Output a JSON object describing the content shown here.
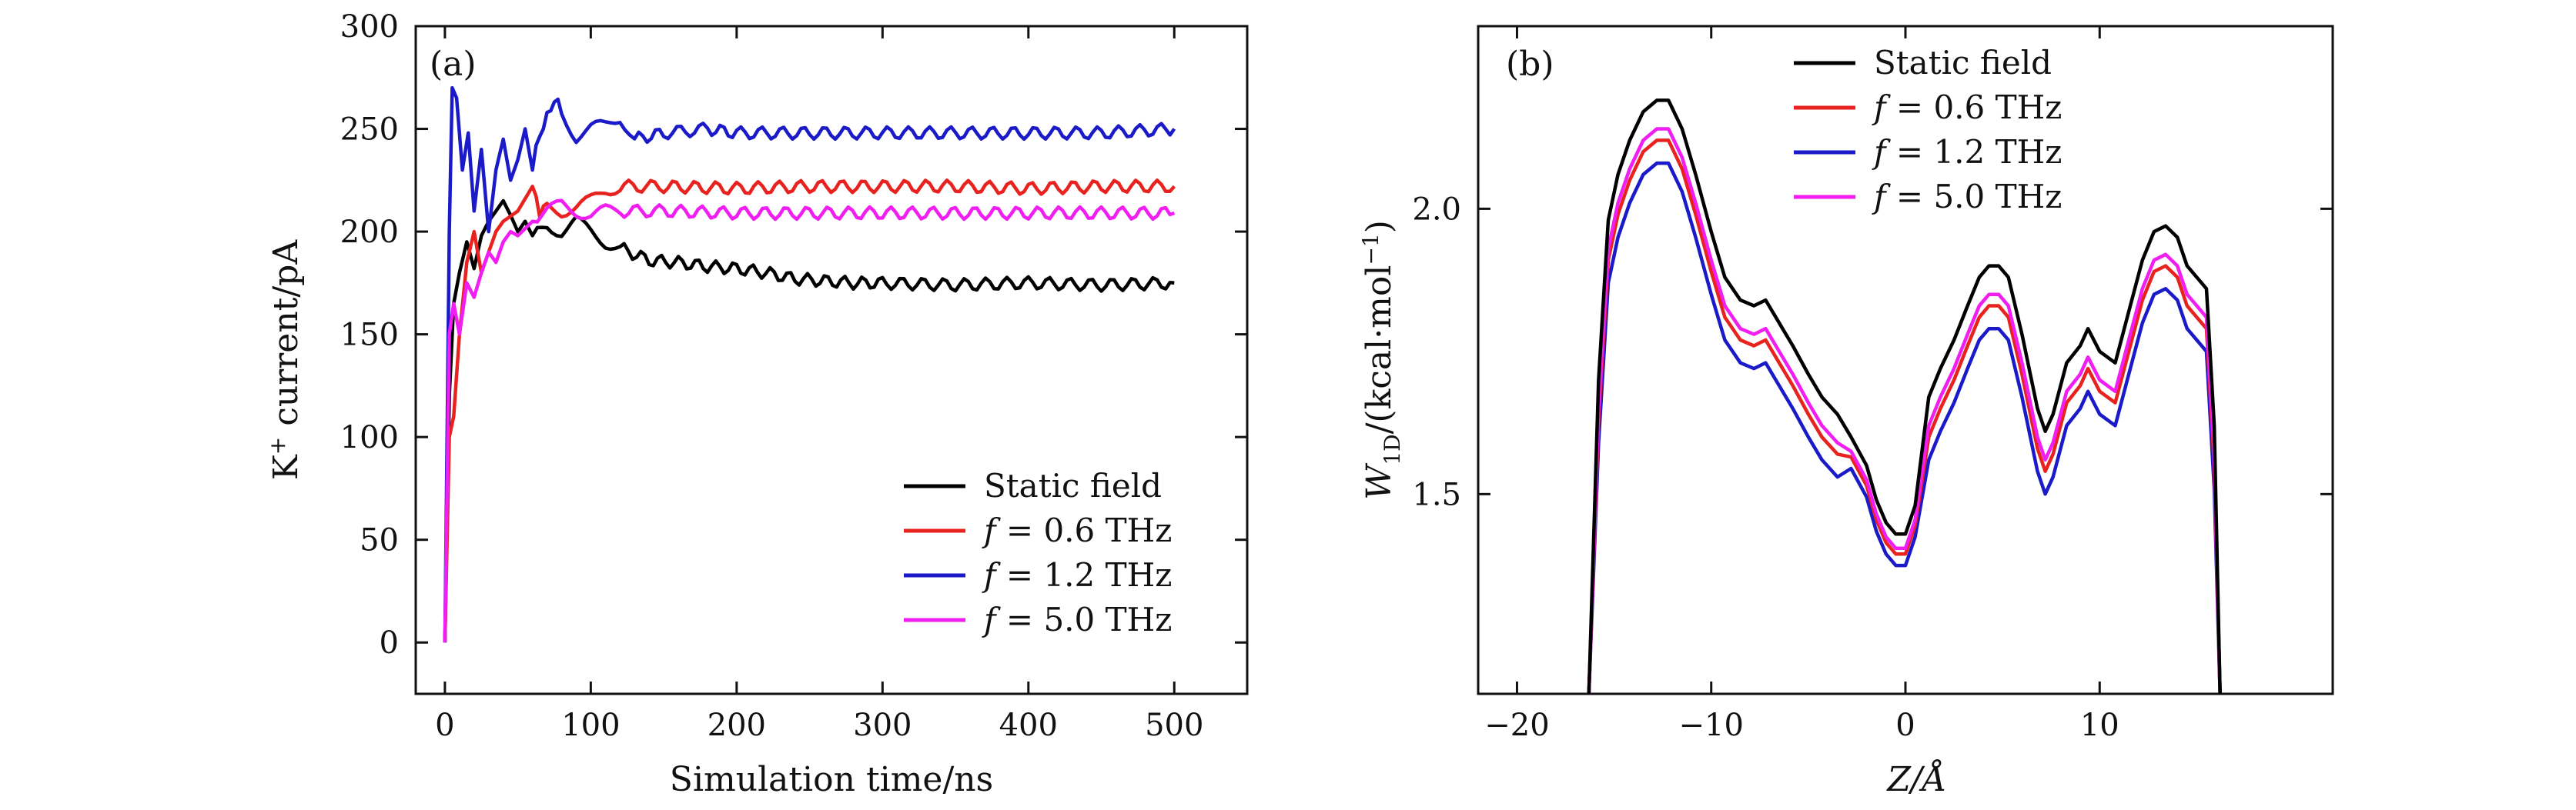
{
  "chart_data": [
    {
      "panel_label": "(a)",
      "type": "line",
      "xlabel": "Simulation time/ns",
      "ylabel_main": "K",
      "ylabel_sup": "+",
      "ylabel_rest": " current/pA",
      "xlim": [
        -20,
        550
      ],
      "ylim": [
        -25,
        300
      ],
      "xticks": [
        0,
        100,
        200,
        300,
        400,
        500
      ],
      "yticks": [
        0,
        50,
        100,
        150,
        200,
        250,
        300
      ],
      "legend_position": "bottom-right",
      "series": [
        {
          "name": "Static field",
          "color": "#000000",
          "points": [
            [
              0,
              0
            ],
            [
              3,
              120
            ],
            [
              6,
              165
            ],
            [
              10,
              180
            ],
            [
              15,
              195
            ],
            [
              20,
              182
            ],
            [
              25,
              198
            ],
            [
              30,
              205
            ],
            [
              35,
              210
            ],
            [
              40,
              215
            ],
            [
              45,
              208
            ],
            [
              50,
              200
            ],
            [
              55,
              205
            ],
            [
              60,
              198
            ],
            [
              70,
              203
            ],
            [
              80,
              200
            ],
            [
              90,
              205
            ],
            [
              100,
              200
            ],
            [
              110,
              195
            ],
            [
              120,
              192
            ],
            [
              140,
              186
            ],
            [
              160,
              185
            ],
            [
              180,
              183
            ],
            [
              200,
              182
            ],
            [
              220,
              180
            ],
            [
              240,
              177
            ],
            [
              260,
              176
            ],
            [
              280,
              175
            ],
            [
              300,
              175
            ],
            [
              350,
              174
            ],
            [
              400,
              175
            ],
            [
              450,
              174
            ],
            [
              500,
              175
            ]
          ]
        },
        {
          "name": "f = 0.6 THz",
          "color": "#e8221e",
          "points": [
            [
              0,
              0
            ],
            [
              3,
              100
            ],
            [
              6,
              110
            ],
            [
              10,
              150
            ],
            [
              15,
              185
            ],
            [
              20,
              200
            ],
            [
              25,
              180
            ],
            [
              30,
              190
            ],
            [
              35,
              200
            ],
            [
              40,
              205
            ],
            [
              50,
              210
            ],
            [
              60,
              222
            ],
            [
              65,
              210
            ],
            [
              70,
              212
            ],
            [
              80,
              210
            ],
            [
              90,
              212
            ],
            [
              100,
              215
            ],
            [
              110,
              220
            ],
            [
              120,
              222
            ],
            [
              150,
              222
            ],
            [
              200,
              221
            ],
            [
              250,
              222
            ],
            [
              300,
              222
            ],
            [
              350,
              222
            ],
            [
              400,
              221
            ],
            [
              450,
              222
            ],
            [
              500,
              222
            ]
          ]
        },
        {
          "name": "f = 1.2 THz",
          "color": "#1a1ac8",
          "points": [
            [
              0,
              0
            ],
            [
              3,
              200
            ],
            [
              5,
              270
            ],
            [
              8,
              265
            ],
            [
              12,
              230
            ],
            [
              16,
              248
            ],
            [
              20,
              210
            ],
            [
              25,
              240
            ],
            [
              30,
              200
            ],
            [
              35,
              230
            ],
            [
              40,
              245
            ],
            [
              45,
              225
            ],
            [
              50,
              235
            ],
            [
              55,
              250
            ],
            [
              60,
              230
            ],
            [
              65,
              248
            ],
            [
              70,
              255
            ],
            [
              75,
              265
            ],
            [
              80,
              258
            ],
            [
              90,
              246
            ],
            [
              100,
              250
            ],
            [
              110,
              252
            ],
            [
              120,
              256
            ],
            [
              130,
              245
            ],
            [
              150,
              248
            ],
            [
              180,
              250
            ],
            [
              200,
              248
            ],
            [
              250,
              248
            ],
            [
              300,
              248
            ],
            [
              350,
              248
            ],
            [
              400,
              248
            ],
            [
              450,
              248
            ],
            [
              500,
              250
            ]
          ]
        },
        {
          "name": "f = 5.0 THz",
          "color": "#f01ef0",
          "points": [
            [
              0,
              0
            ],
            [
              3,
              150
            ],
            [
              6,
              165
            ],
            [
              10,
              150
            ],
            [
              15,
              175
            ],
            [
              20,
              168
            ],
            [
              25,
              180
            ],
            [
              30,
              190
            ],
            [
              35,
              185
            ],
            [
              40,
              195
            ],
            [
              45,
              200
            ],
            [
              50,
              198
            ],
            [
              60,
              205
            ],
            [
              70,
              210
            ],
            [
              80,
              213
            ],
            [
              90,
              210
            ],
            [
              100,
              208
            ],
            [
              110,
              210
            ],
            [
              120,
              210
            ],
            [
              150,
              210
            ],
            [
              200,
              209
            ],
            [
              250,
              209
            ],
            [
              300,
              209
            ],
            [
              350,
              209
            ],
            [
              400,
              209
            ],
            [
              450,
              209
            ],
            [
              500,
              209
            ]
          ]
        }
      ]
    },
    {
      "panel_label": "(b)",
      "type": "line",
      "xlabel": "Z/Å",
      "ylabel_main": "W",
      "ylabel_sub": "1D",
      "ylabel_rest": "/(kcal·mol",
      "ylabel_sup": "−1",
      "ylabel_end": ")",
      "xlim": [
        -22,
        22
      ],
      "ylim": [
        1.15,
        2.32
      ],
      "xticks": [
        -20,
        -10,
        0,
        10
      ],
      "xtick_labels": [
        "−20",
        "−10",
        "0",
        "10"
      ],
      "yticks": [
        1.5,
        2.0
      ],
      "ytick_labels": [
        "1.5",
        "2.0"
      ],
      "legend_position": "top-center",
      "series": [
        {
          "name": "Static field",
          "color": "#000000",
          "offset": 0.0
        },
        {
          "name": "f = 0.6 THz",
          "color": "#e8221e",
          "offset": -0.07
        },
        {
          "name": "f = 1.2 THz",
          "color": "#1a1ac8",
          "offset": -0.11
        },
        {
          "name": "f = 5.0 THz",
          "color": "#f01ef0",
          "offset": -0.05
        }
      ],
      "base_curve": [
        [
          -16.3,
          1.15
        ],
        [
          -15.8,
          1.7
        ],
        [
          -15.3,
          1.98
        ],
        [
          -14.8,
          2.06
        ],
        [
          -14.2,
          2.12
        ],
        [
          -13.5,
          2.17
        ],
        [
          -12.8,
          2.19
        ],
        [
          -12.2,
          2.19
        ],
        [
          -11.5,
          2.14
        ],
        [
          -10.8,
          2.06
        ],
        [
          -10.0,
          1.96
        ],
        [
          -9.3,
          1.88
        ],
        [
          -8.5,
          1.84
        ],
        [
          -7.8,
          1.83
        ],
        [
          -7.2,
          1.84
        ],
        [
          -6.5,
          1.8
        ],
        [
          -5.8,
          1.76
        ],
        [
          -5.0,
          1.71
        ],
        [
          -4.3,
          1.67
        ],
        [
          -3.5,
          1.64
        ],
        [
          -2.8,
          1.6
        ],
        [
          -2.0,
          1.55
        ],
        [
          -1.5,
          1.49
        ],
        [
          -1.0,
          1.45
        ],
        [
          -0.5,
          1.43
        ],
        [
          0.0,
          1.43
        ],
        [
          0.5,
          1.48
        ],
        [
          1.2,
          1.67
        ],
        [
          1.8,
          1.72
        ],
        [
          2.5,
          1.77
        ],
        [
          3.2,
          1.83
        ],
        [
          3.8,
          1.88
        ],
        [
          4.3,
          1.9
        ],
        [
          4.8,
          1.9
        ],
        [
          5.3,
          1.88
        ],
        [
          6.0,
          1.78
        ],
        [
          6.8,
          1.65
        ],
        [
          7.2,
          1.61
        ],
        [
          7.6,
          1.64
        ],
        [
          8.3,
          1.73
        ],
        [
          9.0,
          1.76
        ],
        [
          9.4,
          1.79
        ],
        [
          10.0,
          1.75
        ],
        [
          10.8,
          1.73
        ],
        [
          11.5,
          1.82
        ],
        [
          12.2,
          1.91
        ],
        [
          12.8,
          1.96
        ],
        [
          13.4,
          1.97
        ],
        [
          14.0,
          1.95
        ],
        [
          14.5,
          1.9
        ],
        [
          15.0,
          1.88
        ],
        [
          15.5,
          1.86
        ],
        [
          15.9,
          1.62
        ],
        [
          16.2,
          1.15
        ]
      ]
    }
  ]
}
